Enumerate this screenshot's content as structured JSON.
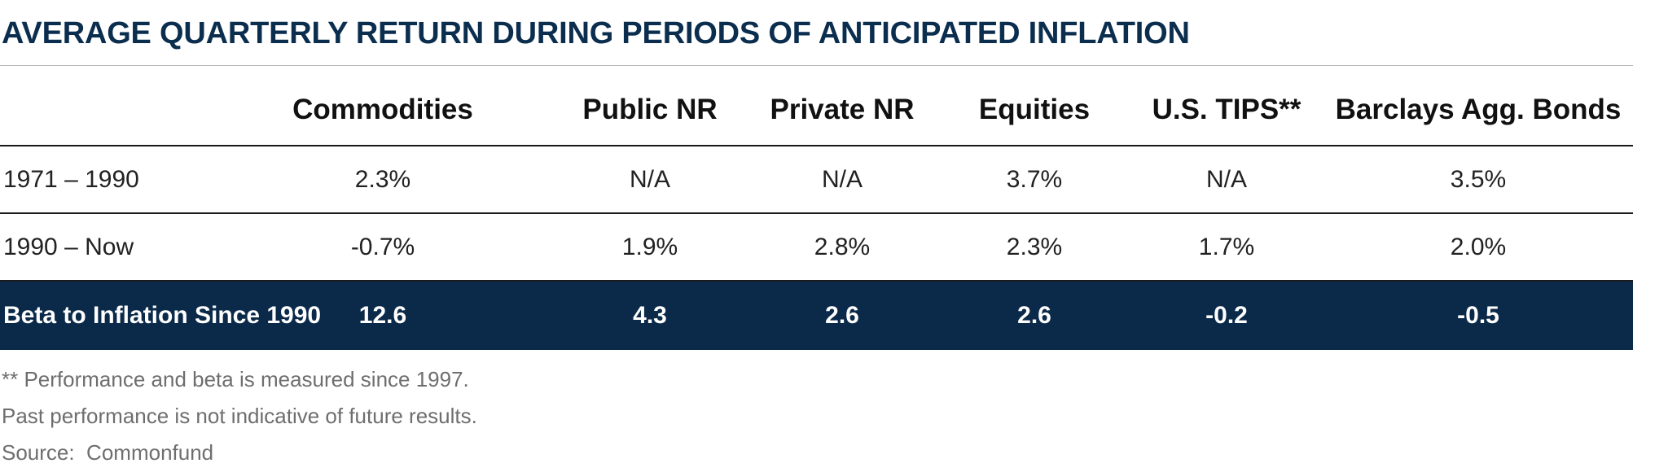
{
  "title": "AVERAGE QUARTERLY RETURN DURING PERIODS OF ANTICIPATED INFLATION",
  "table": {
    "columns": [
      "Commodities",
      "Public NR",
      "Private NR",
      "Equities",
      "U.S. TIPS**",
      "Barclays Agg. Bonds"
    ],
    "rows": [
      {
        "label": "1971 – 1990",
        "values": [
          "2.3%",
          "N/A",
          "N/A",
          "3.7%",
          "N/A",
          "3.5%"
        ]
      },
      {
        "label": "1990 – Now",
        "values": [
          "-0.7%",
          "1.9%",
          "2.8%",
          "2.3%",
          "1.7%",
          "2.0%"
        ]
      }
    ],
    "beta_row": {
      "label": "Beta to Inflation Since 1990",
      "values": [
        "12.6",
        "4.3",
        "2.6",
        "2.6",
        "-0.2",
        "-0.5"
      ]
    }
  },
  "notes": [
    "** Performance and beta is measured since 1997.",
    "Past performance is not indicative of future results.",
    "Source:  Commonfund"
  ],
  "colors": {
    "title": "#0b2e4f",
    "beta_row_background": "#0b2a4a",
    "rule": "#1a1a1a",
    "notes_text": "#6e6e6e"
  }
}
